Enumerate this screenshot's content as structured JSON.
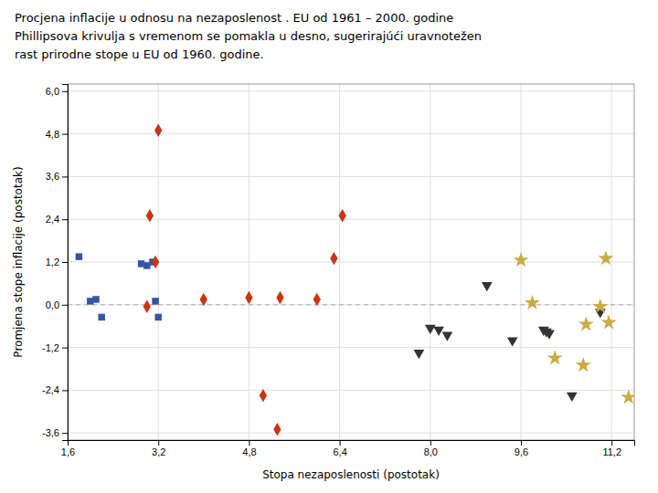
{
  "chart_data": {
    "type": "scatter",
    "title": [
      "Procjena inflacije u odnosu na nezaposlenost . EU od 1961 – 2000. godine",
      "Phillipsova krivulja s vremenom se pomakla u desno, sugerirajúći uravnotežen",
      "rast prirodne stope u EU od 1960. godine."
    ],
    "xlabel": "Stopa nezaposlenosti (postotak)",
    "ylabel": "Promjena stope inflacije (postotak)",
    "xlim": [
      1.6,
      11.6
    ],
    "ylim": [
      -3.8,
      6.2
    ],
    "xticks": [
      {
        "value": 1.6,
        "label": "1,6"
      },
      {
        "value": 3.2,
        "label": "3,2"
      },
      {
        "value": 4.8,
        "label": "4,8"
      },
      {
        "value": 6.4,
        "label": "6,4"
      },
      {
        "value": 8.0,
        "label": "8,0"
      },
      {
        "value": 9.6,
        "label": "9,6"
      },
      {
        "value": 11.2,
        "label": "11,2"
      }
    ],
    "yticks": [
      {
        "value": -3.6,
        "label": "-3,6"
      },
      {
        "value": -2.4,
        "label": "-2,4"
      },
      {
        "value": -1.2,
        "label": "-1,2"
      },
      {
        "value": 0.0,
        "label": "0,0"
      },
      {
        "value": 1.2,
        "label": "1,2"
      },
      {
        "value": 2.4,
        "label": "2,4"
      },
      {
        "value": 3.6,
        "label": "3,6"
      },
      {
        "value": 4.8,
        "label": "4,8"
      },
      {
        "value": 6.0,
        "label": "6,0"
      }
    ],
    "grid": true,
    "hline": 0,
    "series": [
      {
        "color": "#3355aa",
        "marker": "square",
        "x": [
          1.8,
          2.0,
          2.1,
          2.2,
          2.9,
          3.0,
          3.1,
          3.15,
          3.2
        ],
        "values": [
          1.35,
          0.1,
          0.15,
          -0.35,
          1.15,
          1.1,
          1.2,
          0.1,
          -0.35
        ]
      },
      {
        "color": "#cc3311",
        "marker": "diamond",
        "x": [
          3.0,
          3.05,
          3.15,
          3.2,
          4.0,
          4.8,
          5.05,
          5.3,
          5.35,
          6.0,
          6.3,
          6.45
        ],
        "values": [
          -0.05,
          2.5,
          1.2,
          4.9,
          0.15,
          0.2,
          -2.55,
          -3.5,
          0.2,
          0.15,
          1.3,
          2.5
        ]
      },
      {
        "color": "#333333",
        "marker": "triangle_down",
        "x": [
          7.8,
          8.0,
          8.15,
          8.3,
          9.0,
          9.45,
          10.0,
          10.05,
          10.1,
          10.5,
          11.0
        ],
        "values": [
          -1.35,
          -0.65,
          -0.7,
          -0.85,
          0.55,
          -1.0,
          -0.7,
          -0.75,
          -0.8,
          -2.55,
          -0.2
        ]
      },
      {
        "color": "#ccaa44",
        "marker": "star",
        "x": [
          9.6,
          9.8,
          10.2,
          10.7,
          10.75,
          11.0,
          11.1,
          11.15,
          11.5
        ],
        "values": [
          1.25,
          0.05,
          -1.5,
          -1.7,
          -0.55,
          -0.05,
          1.3,
          -0.5,
          -2.6
        ]
      }
    ]
  }
}
